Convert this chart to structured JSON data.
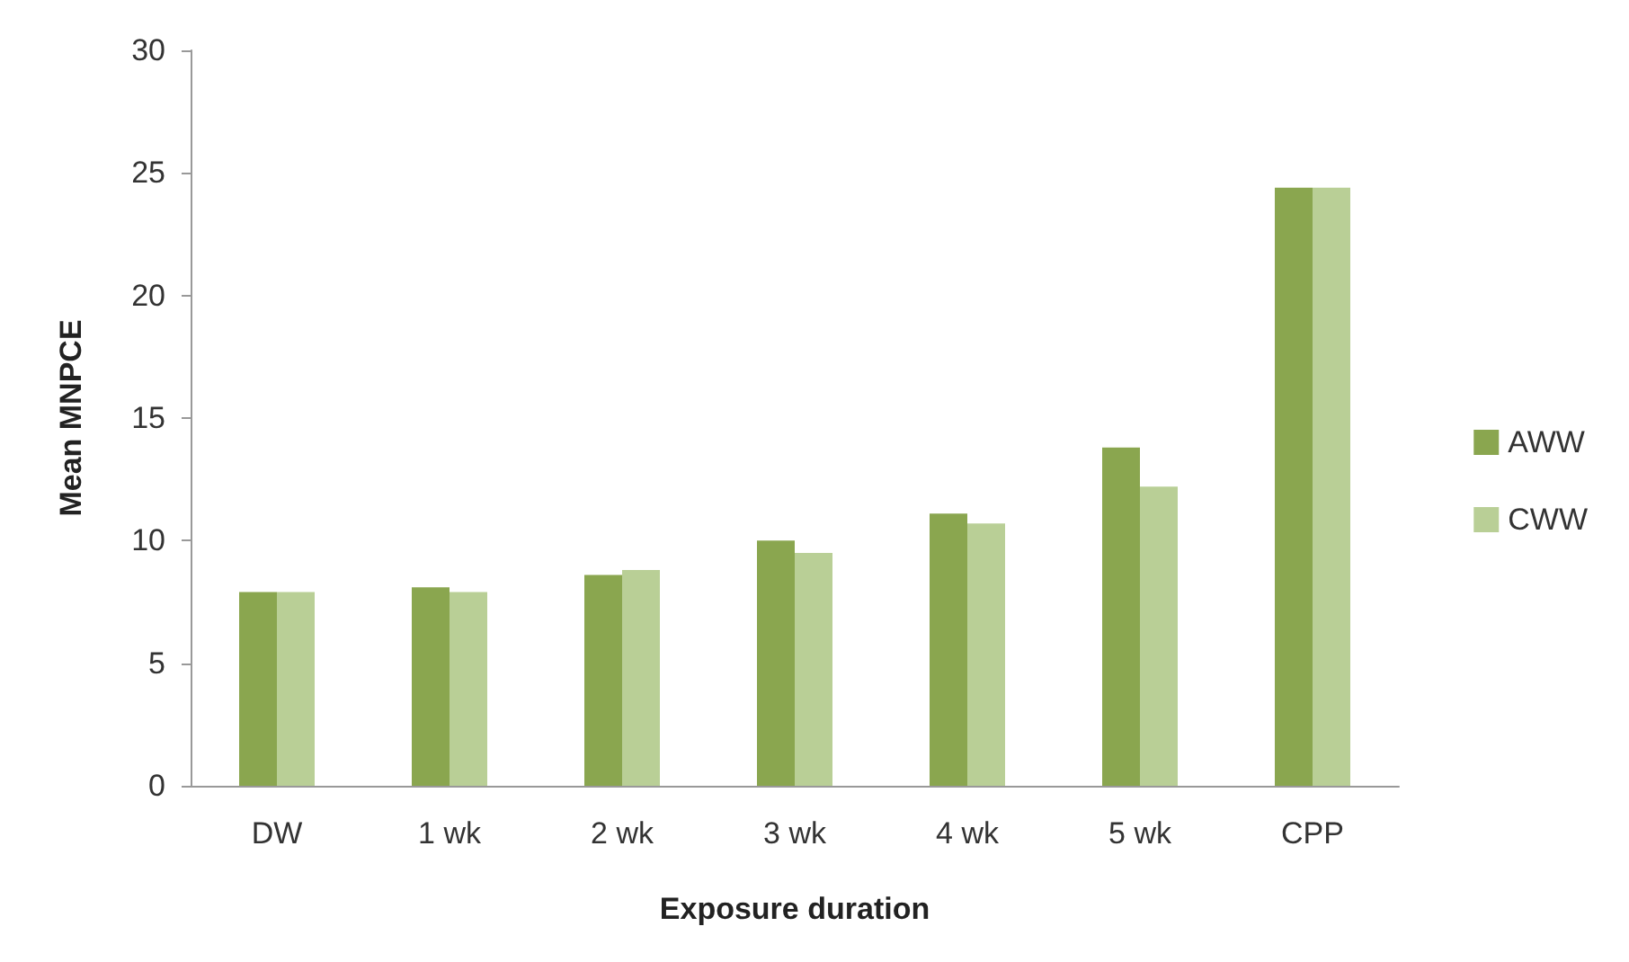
{
  "chart_data": {
    "type": "bar",
    "xlabel": "Exposure duration",
    "ylabel": "Mean MNPCE",
    "categories": [
      "DW",
      "1 wk",
      "2 wk",
      "3 wk",
      "4 wk",
      "5 wk",
      "CPP"
    ],
    "series": [
      {
        "name": "AWW",
        "color": "#8aa64f",
        "values": [
          7.9,
          8.1,
          8.6,
          10.0,
          11.1,
          13.8,
          24.4
        ]
      },
      {
        "name": "CWW",
        "color": "#b9cf96",
        "values": [
          7.9,
          7.9,
          8.8,
          9.5,
          10.7,
          12.2,
          24.4
        ]
      }
    ],
    "ylim": [
      0,
      30
    ],
    "yticks": [
      0,
      5,
      10,
      15,
      20,
      25,
      30
    ],
    "grid": false,
    "legend": "right"
  }
}
